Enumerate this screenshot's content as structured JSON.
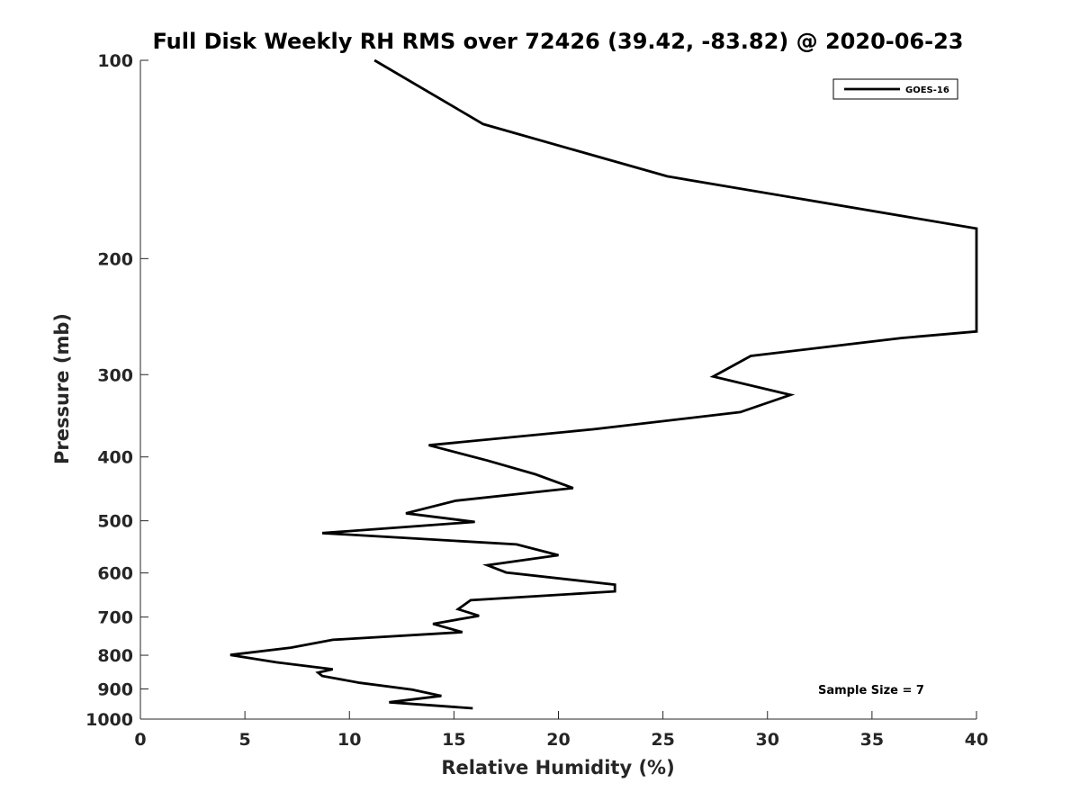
{
  "chart_data": {
    "type": "line",
    "title": "Full Disk Weekly RH RMS over 72426 (39.42, -83.82) @ 2020-06-23",
    "xlabel": "Relative Humidity (%)",
    "ylabel": "Pressure (mb)",
    "xlim": [
      0,
      40
    ],
    "ylim": [
      1000,
      100
    ],
    "yscale": "log",
    "y_reversed": true,
    "x_ticks": [
      0,
      5,
      10,
      15,
      20,
      25,
      30,
      35,
      40
    ],
    "x_tick_labels": [
      "0",
      "5",
      "10",
      "15",
      "20",
      "25",
      "30",
      "35",
      "40"
    ],
    "y_ticks": [
      100,
      200,
      300,
      400,
      500,
      600,
      700,
      800,
      900,
      1000
    ],
    "y_tick_labels": [
      "100",
      "200",
      "300",
      "400",
      "500",
      "600",
      "700",
      "800",
      "900",
      "1000"
    ],
    "grid": false,
    "legend_position": "top-right",
    "series": [
      {
        "name": "GOES-16",
        "color": "#000000",
        "points": [
          [
            11.2,
            100
          ],
          [
            16.4,
            125
          ],
          [
            25.2,
            150
          ],
          [
            40.0,
            180
          ],
          [
            40.0,
            258
          ],
          [
            36.4,
            264
          ],
          [
            29.2,
            281
          ],
          [
            27.4,
            302
          ],
          [
            31.1,
            322
          ],
          [
            28.7,
            342
          ],
          [
            21.7,
            363
          ],
          [
            13.8,
            384
          ],
          [
            16.6,
            405
          ],
          [
            18.9,
            425
          ],
          [
            20.7,
            446
          ],
          [
            15.1,
            466
          ],
          [
            12.7,
            487
          ],
          [
            16.0,
            502
          ],
          [
            8.7,
            522
          ],
          [
            18.0,
            543
          ],
          [
            20.0,
            564
          ],
          [
            16.6,
            584
          ],
          [
            17.5,
            599
          ],
          [
            22.7,
            625
          ],
          [
            22.7,
            640
          ],
          [
            15.8,
            660
          ],
          [
            15.2,
            681
          ],
          [
            16.2,
            697
          ],
          [
            14.0,
            717
          ],
          [
            15.4,
            738
          ],
          [
            9.2,
            758
          ],
          [
            7.2,
            779
          ],
          [
            4.3,
            799
          ],
          [
            6.5,
            820
          ],
          [
            9.2,
            840
          ],
          [
            8.5,
            850
          ],
          [
            8.7,
            860
          ],
          [
            10.5,
            881
          ],
          [
            13.0,
            902
          ],
          [
            14.4,
            922
          ],
          [
            11.9,
            943
          ],
          [
            15.9,
            963
          ]
        ]
      }
    ],
    "annotations": [
      "Sample Size = 7"
    ]
  }
}
